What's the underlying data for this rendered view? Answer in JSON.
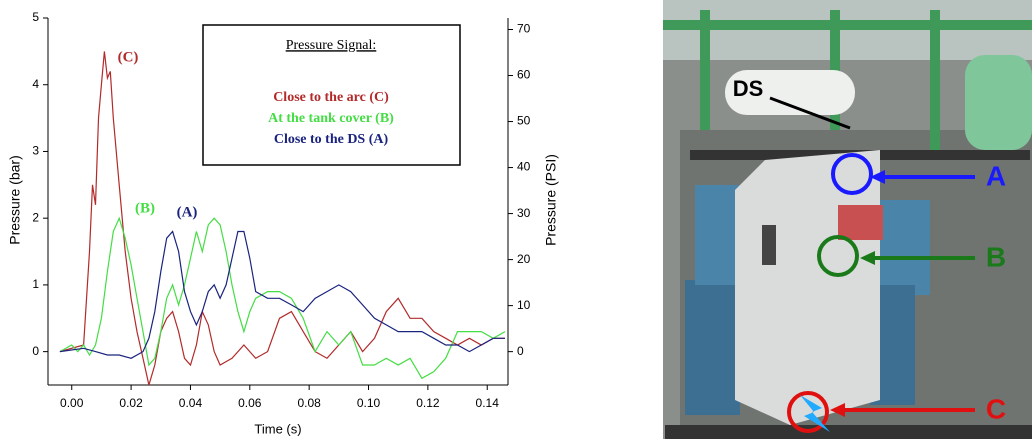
{
  "chart_data": {
    "type": "line",
    "xlabel": "Time (s)",
    "ylabel": "Pressure (bar)",
    "y2label": "Pressure (PSI)",
    "legend_title": "Pressure Signal:",
    "annotations": [
      "(C)",
      "(B)",
      "(A)"
    ],
    "xlim": [
      -0.008,
      0.147
    ],
    "xticks": [
      {
        "value": 0,
        "label": "0.00"
      },
      0.02,
      0.04,
      0.06,
      0.08,
      {
        "value": 0.1,
        "label": "0.10"
      },
      0.12,
      0.14
    ],
    "ylim": [
      -0.5,
      5
    ],
    "yticks": [
      0,
      1,
      2,
      3,
      4,
      5
    ],
    "y2lim": [
      -7.25,
      72.5
    ],
    "y2ticks": [
      0,
      10,
      20,
      30,
      40,
      50,
      60,
      70
    ],
    "series": [
      {
        "name": "Close to the arc (C)",
        "color": "#b22a2a",
        "x": [
          -0.004,
          0.004,
          0.006,
          0.007,
          0.008,
          0.009,
          0.01,
          0.011,
          0.012,
          0.013,
          0.014,
          0.016,
          0.018,
          0.02,
          0.022,
          0.024,
          0.026,
          0.028,
          0.03,
          0.032,
          0.034,
          0.036,
          0.038,
          0.04,
          0.042,
          0.044,
          0.046,
          0.048,
          0.05,
          0.054,
          0.058,
          0.062,
          0.066,
          0.07,
          0.074,
          0.078,
          0.082,
          0.086,
          0.09,
          0.094,
          0.098,
          0.102,
          0.106,
          0.11,
          0.114,
          0.118,
          0.122,
          0.126,
          0.13,
          0.134,
          0.138,
          0.142,
          0.146
        ],
        "values": [
          0,
          0.1,
          1.5,
          2.5,
          2.2,
          3.5,
          4.0,
          4.5,
          4.1,
          4.2,
          3.5,
          2.5,
          1.5,
          0.8,
          0.3,
          -0.1,
          -0.5,
          -0.2,
          0.3,
          0.5,
          0.6,
          0.3,
          -0.1,
          -0.2,
          0.1,
          0.6,
          0.4,
          0.0,
          -0.2,
          -0.1,
          0.1,
          -0.1,
          0.0,
          0.5,
          0.6,
          0.3,
          0.0,
          -0.1,
          0.1,
          0.3,
          0.0,
          0.2,
          0.6,
          0.8,
          0.5,
          0.5,
          0.3,
          0.2,
          0.1,
          0.2,
          0.1,
          0.2,
          0.2
        ]
      },
      {
        "name": "At the tank cover (B)",
        "color": "#44dd44",
        "x": [
          -0.004,
          0.0,
          0.002,
          0.004,
          0.006,
          0.008,
          0.01,
          0.012,
          0.014,
          0.016,
          0.018,
          0.02,
          0.022,
          0.024,
          0.026,
          0.028,
          0.03,
          0.032,
          0.034,
          0.036,
          0.038,
          0.04,
          0.042,
          0.044,
          0.046,
          0.048,
          0.05,
          0.052,
          0.054,
          0.056,
          0.058,
          0.06,
          0.062,
          0.066,
          0.07,
          0.074,
          0.078,
          0.082,
          0.086,
          0.09,
          0.094,
          0.098,
          0.102,
          0.106,
          0.11,
          0.114,
          0.118,
          0.122,
          0.126,
          0.13,
          0.134,
          0.138,
          0.142,
          0.146
        ],
        "values": [
          0,
          0.1,
          0.0,
          0.1,
          -0.05,
          0.1,
          0.5,
          1.2,
          1.8,
          2.0,
          1.7,
          1.3,
          0.8,
          0.3,
          -0.2,
          -0.1,
          0.3,
          0.8,
          1.0,
          0.7,
          1.0,
          1.4,
          1.8,
          1.5,
          1.9,
          2.0,
          1.9,
          1.5,
          1.0,
          0.6,
          0.3,
          0.6,
          0.8,
          0.9,
          0.9,
          0.8,
          0.5,
          0.0,
          0.3,
          0.1,
          0.3,
          -0.2,
          -0.2,
          -0.1,
          -0.2,
          -0.1,
          -0.4,
          -0.3,
          -0.1,
          0.3,
          0.3,
          0.3,
          0.2,
          0.3
        ]
      },
      {
        "name": "Close to the DS (A)",
        "color": "#1a237e",
        "x": [
          -0.004,
          0.004,
          0.008,
          0.012,
          0.016,
          0.02,
          0.024,
          0.026,
          0.028,
          0.03,
          0.032,
          0.034,
          0.036,
          0.038,
          0.04,
          0.042,
          0.044,
          0.046,
          0.048,
          0.05,
          0.052,
          0.054,
          0.056,
          0.058,
          0.06,
          0.062,
          0.066,
          0.07,
          0.074,
          0.078,
          0.082,
          0.086,
          0.09,
          0.094,
          0.098,
          0.102,
          0.106,
          0.11,
          0.114,
          0.118,
          0.122,
          0.126,
          0.13,
          0.134,
          0.138,
          0.142,
          0.146
        ],
        "values": [
          0,
          0.05,
          0.0,
          -0.05,
          -0.05,
          -0.1,
          0.0,
          0.2,
          0.6,
          1.2,
          1.7,
          1.8,
          1.5,
          0.9,
          0.6,
          0.4,
          0.6,
          0.9,
          1.0,
          0.8,
          1.0,
          1.4,
          1.8,
          1.8,
          1.4,
          0.9,
          0.8,
          0.8,
          0.7,
          0.6,
          0.8,
          0.9,
          1.0,
          0.9,
          0.7,
          0.5,
          0.4,
          0.3,
          0.3,
          0.3,
          0.2,
          0.1,
          0.1,
          0.0,
          0.1,
          0.2,
          0.2
        ]
      }
    ]
  },
  "photo": {
    "labels": [
      "DS",
      "A",
      "B",
      "C"
    ]
  }
}
